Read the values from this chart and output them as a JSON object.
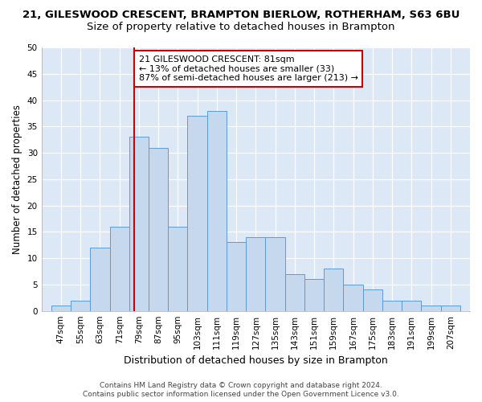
{
  "title_line1": "21, GILESWOOD CRESCENT, BRAMPTON BIERLOW, ROTHERHAM, S63 6BU",
  "title_line2": "Size of property relative to detached houses in Brampton",
  "xlabel": "Distribution of detached houses by size in Brampton",
  "ylabel": "Number of detached properties",
  "footnote1": "Contains HM Land Registry data © Crown copyright and database right 2024.",
  "footnote2": "Contains public sector information licensed under the Open Government Licence v3.0.",
  "bin_labels": [
    "47sqm",
    "55sqm",
    "63sqm",
    "71sqm",
    "79sqm",
    "87sqm",
    "95sqm",
    "103sqm",
    "111sqm",
    "119sqm",
    "127sqm",
    "135sqm",
    "143sqm",
    "151sqm",
    "159sqm",
    "167sqm",
    "175sqm",
    "183sqm",
    "191sqm",
    "199sqm",
    "207sqm"
  ],
  "bar_values": [
    1,
    2,
    12,
    16,
    33,
    31,
    16,
    37,
    38,
    13,
    14,
    14,
    7,
    6,
    8,
    5,
    4,
    2,
    2,
    1,
    1
  ],
  "bin_edges": [
    47,
    55,
    63,
    71,
    79,
    87,
    95,
    103,
    111,
    119,
    127,
    135,
    143,
    151,
    159,
    167,
    175,
    183,
    191,
    199,
    207
  ],
  "bar_color": "#c5d8ed",
  "bar_edge_color": "#5b9bd5",
  "vline_x": 81,
  "vline_color": "#cc0000",
  "annotation_text": "21 GILESWOOD CRESCENT: 81sqm\n← 13% of detached houses are smaller (33)\n87% of semi-detached houses are larger (213) →",
  "annotation_box_color": "#ffffff",
  "annotation_border_color": "#cc0000",
  "ylim": [
    0,
    50
  ],
  "yticks": [
    0,
    5,
    10,
    15,
    20,
    25,
    30,
    35,
    40,
    45,
    50
  ],
  "bg_color": "#dde8f4",
  "plot_bg_color": "#dce8f5",
  "title1_fontsize": 9.5,
  "title2_fontsize": 9.5,
  "xlabel_fontsize": 9,
  "ylabel_fontsize": 8.5,
  "tick_fontsize": 7.5,
  "annotation_fontsize": 8
}
